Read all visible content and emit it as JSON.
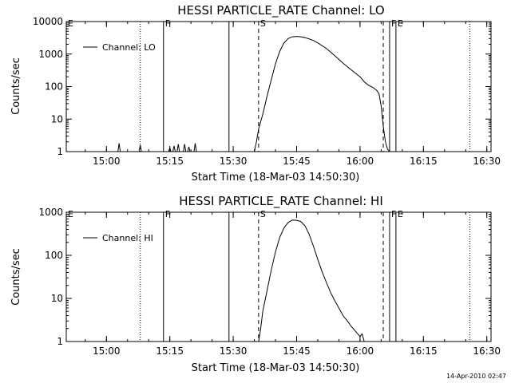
{
  "footer": {
    "timestamp": "14-Apr-2010 02:47"
  },
  "chart_data": [
    {
      "type": "line",
      "title": "HESSI PARTICLE_RATE Channel: LO",
      "xlabel": "Start Time (18-Mar-03 14:50:30)",
      "ylabel": "Counts/sec",
      "yscale": "log",
      "xlim": [
        "14:50:30",
        "16:31:00"
      ],
      "ylim": [
        1,
        10000
      ],
      "xticks": [
        "15:00",
        "15:15",
        "15:30",
        "15:45",
        "16:00",
        "16:15",
        "16:30"
      ],
      "yticks": [
        "1",
        "10",
        "100",
        "1000",
        "10000"
      ],
      "legend": {
        "position": "top-left",
        "label": "Channel: LO"
      },
      "markers": [
        {
          "label": "E",
          "x": "14:50:30",
          "style": "none"
        },
        {
          "label": "",
          "x": "15:08:00",
          "style": "dotted"
        },
        {
          "label": "F",
          "x": "15:13:30",
          "style": "solid"
        },
        {
          "label": "",
          "x": "15:29:00",
          "style": "solid"
        },
        {
          "label": "S",
          "x": "15:36:00",
          "style": "dashed"
        },
        {
          "label": "",
          "x": "16:05:30",
          "style": "dashed"
        },
        {
          "label": "F",
          "x": "16:07:00",
          "style": "solid"
        },
        {
          "label": "E",
          "x": "16:08:30",
          "style": "solid"
        },
        {
          "label": "",
          "x": "16:26:00",
          "style": "dotted"
        }
      ],
      "spikes": [
        {
          "x": "15:03:00",
          "y": 1.8
        },
        {
          "x": "15:08:00",
          "y": 1.6
        },
        {
          "x": "15:15:00",
          "y": 1.3
        },
        {
          "x": "15:16:00",
          "y": 1.5
        },
        {
          "x": "15:17:00",
          "y": 1.7
        },
        {
          "x": "15:18:30",
          "y": 1.7
        },
        {
          "x": "15:19:30",
          "y": 1.4
        },
        {
          "x": "15:21:00",
          "y": 1.8
        }
      ],
      "series": [
        {
          "name": "Channel: LO",
          "x": [
            "15:35:00",
            "15:35:30",
            "15:36:00",
            "15:37:00",
            "15:38:00",
            "15:39:00",
            "15:40:00",
            "15:41:00",
            "15:42:00",
            "15:43:00",
            "15:44:00",
            "15:45:00",
            "15:46:00",
            "15:47:00",
            "15:48:00",
            "15:49:00",
            "15:50:00",
            "15:52:00",
            "15:54:00",
            "15:56:00",
            "15:58:00",
            "16:00:00",
            "16:01:00",
            "16:02:00",
            "16:03:00",
            "16:04:00",
            "16:04:30",
            "16:05:00",
            "16:05:30",
            "16:06:00",
            "16:06:30",
            "16:07:00"
          ],
          "y": [
            1,
            2,
            5,
            14,
            50,
            160,
            500,
            1200,
            2200,
            3000,
            3400,
            3500,
            3400,
            3200,
            2900,
            2600,
            2200,
            1500,
            900,
            520,
            320,
            200,
            140,
            110,
            95,
            75,
            60,
            25,
            6,
            2,
            1.2,
            1
          ]
        }
      ]
    },
    {
      "type": "line",
      "title": "HESSI PARTICLE_RATE Channel: HI",
      "xlabel": "Start Time (18-Mar-03 14:50:30)",
      "ylabel": "Counts/sec",
      "yscale": "log",
      "xlim": [
        "14:50:30",
        "16:31:00"
      ],
      "ylim": [
        1,
        1000
      ],
      "xticks": [
        "15:00",
        "15:15",
        "15:30",
        "15:45",
        "16:00",
        "16:15",
        "16:30"
      ],
      "yticks": [
        "1",
        "10",
        "100",
        "1000"
      ],
      "legend": {
        "position": "top-left",
        "label": "Channel: HI"
      },
      "markers": [
        {
          "label": "E",
          "x": "14:50:30",
          "style": "none"
        },
        {
          "label": "",
          "x": "15:08:00",
          "style": "dotted"
        },
        {
          "label": "F",
          "x": "15:13:30",
          "style": "solid"
        },
        {
          "label": "",
          "x": "15:29:00",
          "style": "solid"
        },
        {
          "label": "S",
          "x": "15:36:00",
          "style": "dashed"
        },
        {
          "label": "",
          "x": "16:05:30",
          "style": "dashed"
        },
        {
          "label": "F",
          "x": "16:07:00",
          "style": "solid"
        },
        {
          "label": "E",
          "x": "16:08:30",
          "style": "solid"
        },
        {
          "label": "",
          "x": "16:26:00",
          "style": "dotted"
        }
      ],
      "spikes": [],
      "series": [
        {
          "name": "Channel: HI",
          "x": [
            "15:36:00",
            "15:36:30",
            "15:37:00",
            "15:38:00",
            "15:39:00",
            "15:40:00",
            "15:41:00",
            "15:42:00",
            "15:43:00",
            "15:44:00",
            "15:45:00",
            "15:46:00",
            "15:47:00",
            "15:48:00",
            "15:49:00",
            "15:50:00",
            "15:51:00",
            "15:52:00",
            "15:53:00",
            "15:54:00",
            "15:55:00",
            "15:56:00",
            "15:57:00",
            "15:58:00",
            "15:59:00",
            "16:00:00",
            "16:00:30",
            "16:01:00"
          ],
          "y": [
            1,
            2,
            5,
            15,
            45,
            120,
            260,
            430,
            580,
            660,
            650,
            610,
            480,
            300,
            160,
            80,
            42,
            24,
            14,
            9,
            6,
            4,
            3,
            2.2,
            1.7,
            1.3,
            1.5,
            1
          ]
        }
      ]
    }
  ]
}
